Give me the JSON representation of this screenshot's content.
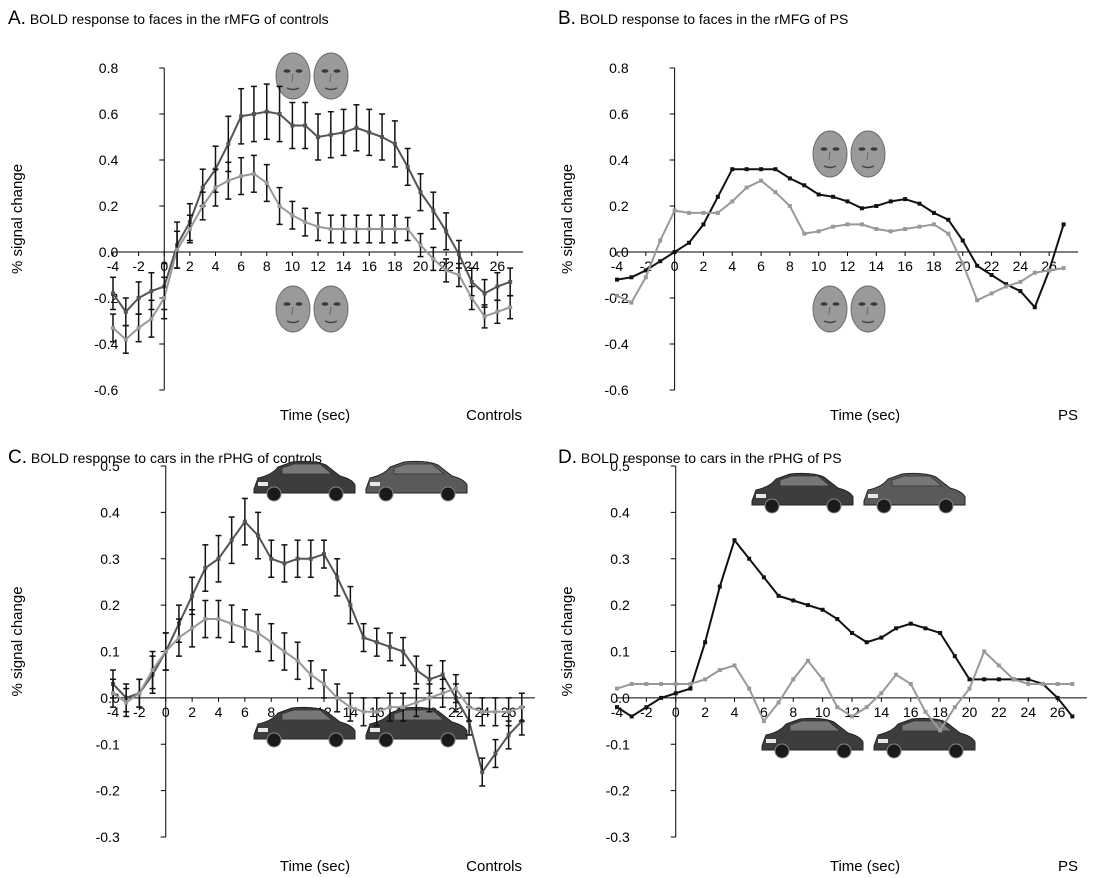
{
  "chart_data": [
    {
      "type": "line",
      "letter": "A.",
      "title": "BOLD response to faces in the rMFG of controls",
      "xlabel": "Time (sec)",
      "ylabel": "% signal change",
      "group": "Controls",
      "xlim": [
        -4,
        28
      ],
      "ylim": [
        -0.6,
        0.8
      ],
      "yticks": [
        "-0.6",
        "-0.4",
        "-0.2",
        "0.0",
        "0.2",
        "0.4",
        "0.6",
        "0.8"
      ],
      "xticks": [
        "-4",
        "-2",
        "0",
        "2",
        "4",
        "6",
        "8",
        "10",
        "12",
        "14",
        "16",
        "18",
        "20",
        "22",
        "24",
        "26"
      ],
      "icon_top": "face-pair-icon",
      "icon_bottom": "face-pair-icon",
      "series": [
        {
          "color": "#555555",
          "x": [
            -4,
            -3,
            -2,
            -1,
            0,
            1,
            2,
            3,
            4,
            5,
            6,
            7,
            8,
            9,
            10,
            11,
            12,
            13,
            14,
            15,
            16,
            17,
            18,
            19,
            20,
            21,
            22,
            23,
            24,
            25,
            26,
            27
          ],
          "y": [
            -0.18,
            -0.26,
            -0.2,
            -0.17,
            -0.15,
            0.03,
            0.13,
            0.28,
            0.36,
            0.47,
            0.59,
            0.6,
            0.61,
            0.6,
            0.55,
            0.55,
            0.5,
            0.51,
            0.52,
            0.54,
            0.52,
            0.5,
            0.47,
            0.37,
            0.26,
            0.18,
            0.09,
            -0.01,
            -0.13,
            -0.18,
            -0.15,
            -0.13
          ],
          "err": [
            0.07,
            0.06,
            0.07,
            0.08,
            0.1,
            0.1,
            0.08,
            0.08,
            0.1,
            0.12,
            0.12,
            0.12,
            0.12,
            0.12,
            0.1,
            0.1,
            0.1,
            0.1,
            0.1,
            0.1,
            0.1,
            0.1,
            0.1,
            0.08,
            0.08,
            0.08,
            0.08,
            0.06,
            0.06,
            0.06,
            0.06,
            0.06
          ]
        },
        {
          "color": "#999999",
          "x": [
            -4,
            -3,
            -2,
            -1,
            0,
            1,
            2,
            3,
            4,
            5,
            6,
            7,
            8,
            9,
            10,
            11,
            12,
            13,
            14,
            15,
            16,
            17,
            18,
            19,
            20,
            21,
            22,
            23,
            24,
            25,
            26,
            27
          ],
          "y": [
            -0.33,
            -0.38,
            -0.33,
            -0.29,
            -0.2,
            0.01,
            0.1,
            0.2,
            0.28,
            0.31,
            0.33,
            0.34,
            0.3,
            0.2,
            0.16,
            0.13,
            0.11,
            0.1,
            0.1,
            0.1,
            0.1,
            0.1,
            0.1,
            0.1,
            0.03,
            -0.03,
            -0.08,
            -0.1,
            -0.2,
            -0.28,
            -0.26,
            -0.24
          ],
          "err": [
            0.06,
            0.06,
            0.06,
            0.08,
            0.09,
            0.08,
            0.06,
            0.06,
            0.08,
            0.08,
            0.08,
            0.08,
            0.08,
            0.08,
            0.06,
            0.06,
            0.06,
            0.06,
            0.06,
            0.06,
            0.06,
            0.06,
            0.06,
            0.05,
            0.05,
            0.05,
            0.05,
            0.05,
            0.05,
            0.05,
            0.05,
            0.05
          ]
        }
      ]
    },
    {
      "type": "line",
      "letter": "B.",
      "title": "BOLD response to faces in the rMFG of PS",
      "xlabel": "Time (sec)",
      "ylabel": "% signal change",
      "group": "PS",
      "xlim": [
        -4,
        28
      ],
      "ylim": [
        -0.6,
        0.8
      ],
      "yticks": [
        "-0.6",
        "-0.4",
        "-0.2",
        "0.0",
        "0.2",
        "0.4",
        "0.6",
        "0.8"
      ],
      "xticks": [
        "-4",
        "-2",
        "0",
        "2",
        "4",
        "6",
        "8",
        "10",
        "12",
        "14",
        "16",
        "18",
        "20",
        "22",
        "24",
        "26"
      ],
      "icon_top": "face-pair-icon",
      "icon_bottom": "face-pair-icon",
      "series": [
        {
          "color": "#111111",
          "x": [
            -4,
            -3,
            -2,
            -1,
            0,
            1,
            2,
            3,
            4,
            5,
            6,
            7,
            8,
            9,
            10,
            11,
            12,
            13,
            14,
            15,
            16,
            17,
            18,
            19,
            20,
            21,
            22,
            23,
            24,
            25,
            26,
            27
          ],
          "y": [
            -0.12,
            -0.11,
            -0.08,
            -0.04,
            0.0,
            0.04,
            0.12,
            0.24,
            0.36,
            0.36,
            0.36,
            0.36,
            0.32,
            0.29,
            0.25,
            0.24,
            0.22,
            0.19,
            0.2,
            0.22,
            0.23,
            0.21,
            0.17,
            0.14,
            0.05,
            -0.06,
            -0.1,
            -0.14,
            -0.17,
            -0.24,
            -0.08,
            0.12
          ]
        },
        {
          "color": "#999999",
          "x": [
            -4,
            -3,
            -2,
            -1,
            0,
            1,
            2,
            3,
            4,
            5,
            6,
            7,
            8,
            9,
            10,
            11,
            12,
            13,
            14,
            15,
            16,
            17,
            18,
            19,
            20,
            21,
            22,
            23,
            24,
            25,
            26,
            27
          ],
          "y": [
            -0.19,
            -0.22,
            -0.11,
            0.05,
            0.18,
            0.17,
            0.17,
            0.17,
            0.22,
            0.28,
            0.31,
            0.26,
            0.2,
            0.08,
            0.09,
            0.11,
            0.12,
            0.12,
            0.1,
            0.09,
            0.1,
            0.11,
            0.12,
            0.08,
            -0.05,
            -0.21,
            -0.18,
            -0.15,
            -0.13,
            -0.09,
            -0.08,
            -0.07
          ]
        }
      ]
    },
    {
      "type": "line",
      "letter": "C.",
      "title": "BOLD response to cars in the rPHG of controls",
      "xlabel": "Time (sec)",
      "ylabel": "% signal change",
      "group": "Controls",
      "xlim": [
        -4,
        28
      ],
      "ylim": [
        -0.3,
        0.5
      ],
      "yticks": [
        "-0.3",
        "-0.2",
        "-0.1",
        "0.0",
        "0.1",
        "0.2",
        "0.3",
        "0.4",
        "0.5"
      ],
      "xticks": [
        "-4",
        "-2",
        "0",
        "2",
        "4",
        "6",
        "8",
        "10",
        "12",
        "14",
        "16",
        "18",
        "20",
        "22",
        "24",
        "26"
      ],
      "icon_top": "car-pair-icon",
      "icon_bottom": "car-pair-icon",
      "series": [
        {
          "color": "#555555",
          "x": [
            -4,
            -3,
            -2,
            -1,
            0,
            1,
            2,
            3,
            4,
            5,
            6,
            7,
            8,
            9,
            10,
            11,
            12,
            13,
            14,
            15,
            16,
            17,
            18,
            19,
            20,
            21,
            22,
            23,
            24,
            25,
            26,
            27
          ],
          "y": [
            0.03,
            0.0,
            0.01,
            0.05,
            0.1,
            0.16,
            0.22,
            0.28,
            0.3,
            0.34,
            0.38,
            0.35,
            0.3,
            0.29,
            0.3,
            0.3,
            0.31,
            0.26,
            0.2,
            0.13,
            0.12,
            0.11,
            0.1,
            0.06,
            0.04,
            0.05,
            0.0,
            -0.05,
            -0.16,
            -0.12,
            -0.08,
            -0.05
          ],
          "err": [
            0.03,
            0.03,
            0.03,
            0.04,
            0.04,
            0.04,
            0.04,
            0.05,
            0.05,
            0.05,
            0.05,
            0.05,
            0.04,
            0.04,
            0.04,
            0.04,
            0.03,
            0.04,
            0.04,
            0.03,
            0.03,
            0.03,
            0.03,
            0.03,
            0.03,
            0.03,
            0.03,
            0.03,
            0.03,
            0.03,
            0.03,
            0.03
          ]
        },
        {
          "color": "#999999",
          "x": [
            -4,
            -3,
            -2,
            -1,
            0,
            1,
            2,
            3,
            4,
            5,
            6,
            7,
            8,
            9,
            10,
            11,
            12,
            13,
            14,
            15,
            16,
            17,
            18,
            19,
            20,
            21,
            22,
            23,
            24,
            25,
            26,
            27
          ],
          "y": [
            0.01,
            -0.01,
            0.01,
            0.06,
            0.1,
            0.13,
            0.15,
            0.17,
            0.17,
            0.16,
            0.15,
            0.14,
            0.12,
            0.1,
            0.08,
            0.05,
            0.03,
            0.0,
            -0.02,
            -0.03,
            -0.03,
            -0.02,
            -0.02,
            -0.01,
            0.0,
            0.01,
            0.02,
            -0.02,
            -0.03,
            -0.03,
            -0.03,
            -0.02
          ],
          "err": [
            0.03,
            0.03,
            0.03,
            0.04,
            0.04,
            0.04,
            0.04,
            0.04,
            0.04,
            0.04,
            0.04,
            0.04,
            0.04,
            0.04,
            0.04,
            0.03,
            0.03,
            0.03,
            0.03,
            0.03,
            0.03,
            0.03,
            0.03,
            0.03,
            0.03,
            0.03,
            0.03,
            0.03,
            0.03,
            0.03,
            0.03,
            0.03
          ]
        }
      ]
    },
    {
      "type": "line",
      "letter": "D.",
      "title": "BOLD response to cars in the rPHG of PS",
      "xlabel": "Time (sec)",
      "ylabel": "% signal change",
      "group": "PS",
      "xlim": [
        -4,
        28
      ],
      "ylim": [
        -0.3,
        0.5
      ],
      "yticks": [
        "-0.3",
        "-0.2",
        "-0.1",
        "0.0",
        "0.1",
        "0.2",
        "0.3",
        "0.4",
        "0.5"
      ],
      "xticks": [
        "-4",
        "-2",
        "0",
        "2",
        "4",
        "6",
        "8",
        "10",
        "12",
        "14",
        "16",
        "18",
        "20",
        "22",
        "24",
        "26"
      ],
      "icon_top": "car-pair-icon",
      "icon_bottom": "car-pair-icon",
      "series": [
        {
          "color": "#111111",
          "x": [
            -4,
            -3,
            -2,
            -1,
            0,
            1,
            2,
            3,
            4,
            5,
            6,
            7,
            8,
            9,
            10,
            11,
            12,
            13,
            14,
            15,
            16,
            17,
            18,
            19,
            20,
            21,
            22,
            23,
            24,
            25,
            26,
            27
          ],
          "y": [
            -0.02,
            -0.04,
            -0.02,
            0.0,
            0.01,
            0.02,
            0.12,
            0.24,
            0.34,
            0.3,
            0.26,
            0.22,
            0.21,
            0.2,
            0.19,
            0.17,
            0.14,
            0.12,
            0.13,
            0.15,
            0.16,
            0.15,
            0.14,
            0.09,
            0.04,
            0.04,
            0.04,
            0.04,
            0.04,
            0.03,
            0.0,
            -0.04
          ]
        },
        {
          "color": "#999999",
          "x": [
            -4,
            -3,
            -2,
            -1,
            0,
            1,
            2,
            3,
            4,
            5,
            6,
            7,
            8,
            9,
            10,
            11,
            12,
            13,
            14,
            15,
            16,
            17,
            18,
            19,
            20,
            21,
            22,
            23,
            24,
            25,
            26,
            27
          ],
          "y": [
            0.02,
            0.03,
            0.03,
            0.03,
            0.03,
            0.03,
            0.04,
            0.06,
            0.07,
            0.02,
            -0.05,
            -0.01,
            0.04,
            0.08,
            0.04,
            -0.02,
            -0.04,
            -0.02,
            0.01,
            0.05,
            0.03,
            -0.03,
            -0.07,
            -0.02,
            0.02,
            0.1,
            0.07,
            0.04,
            0.03,
            0.03,
            0.03,
            0.03
          ]
        }
      ]
    }
  ]
}
